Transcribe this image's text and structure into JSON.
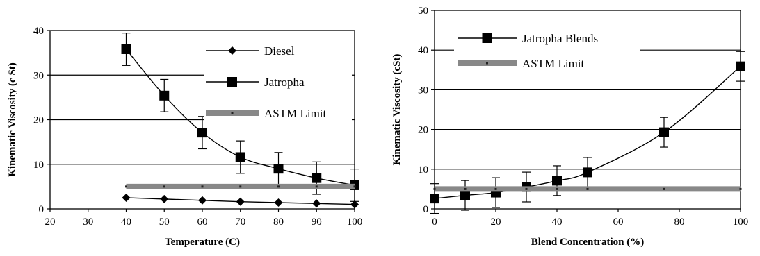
{
  "chart_data": [
    {
      "type": "line",
      "xlabel": "Temperature (C)",
      "ylabel": "Kinematic Viscosity (c St)",
      "xlim": [
        20,
        100
      ],
      "ylim": [
        0,
        40
      ],
      "x_ticks": [
        20,
        30,
        40,
        50,
        60,
        70,
        80,
        90,
        100
      ],
      "y_ticks": [
        0,
        10,
        20,
        30,
        40
      ],
      "grid": "horizontal",
      "legend_position": "top-right",
      "series": [
        {
          "name": "Diesel",
          "marker": "diamond",
          "color": "#000000",
          "x": [
            40,
            50,
            60,
            70,
            80,
            90,
            100
          ],
          "y": [
            2.5,
            2.2,
            1.9,
            1.6,
            1.4,
            1.2,
            1.0
          ]
        },
        {
          "name": "Jatropha",
          "marker": "square",
          "color": "#000000",
          "error_bars": true,
          "x": [
            40,
            50,
            60,
            70,
            80,
            90,
            100
          ],
          "y": [
            35.8,
            25.4,
            17.1,
            11.6,
            9.0,
            6.9,
            5.3
          ]
        },
        {
          "name": "ASTM Limit",
          "marker": "none",
          "color": "#888888",
          "thick": true,
          "x": [
            40,
            50,
            60,
            70,
            80,
            90,
            100
          ],
          "y": [
            5,
            5,
            5,
            5,
            5,
            5,
            5
          ]
        }
      ]
    },
    {
      "type": "line",
      "xlabel": "Blend Concentration (%)",
      "ylabel": "Kinematic Viscosity (cSt)",
      "xlim": [
        0,
        100
      ],
      "ylim": [
        0,
        50
      ],
      "x_ticks": [
        0,
        20,
        40,
        60,
        80,
        100
      ],
      "y_ticks": [
        0,
        10,
        20,
        30,
        40,
        50
      ],
      "grid": "horizontal",
      "legend_position": "top-left",
      "series": [
        {
          "name": "Jatropha Blends",
          "marker": "square",
          "color": "#000000",
          "error_bars": true,
          "x": [
            0,
            10,
            20,
            30,
            40,
            50,
            75,
            100
          ],
          "y": [
            2.6,
            3.4,
            4.1,
            5.5,
            7.1,
            9.2,
            19.3,
            35.9
          ]
        },
        {
          "name": "ASTM Limit",
          "marker": "none",
          "color": "#888888",
          "thick": true,
          "x": [
            0,
            10,
            20,
            30,
            40,
            50,
            75,
            100
          ],
          "y": [
            5,
            5,
            5,
            5,
            5,
            5,
            5,
            5
          ]
        }
      ]
    }
  ]
}
